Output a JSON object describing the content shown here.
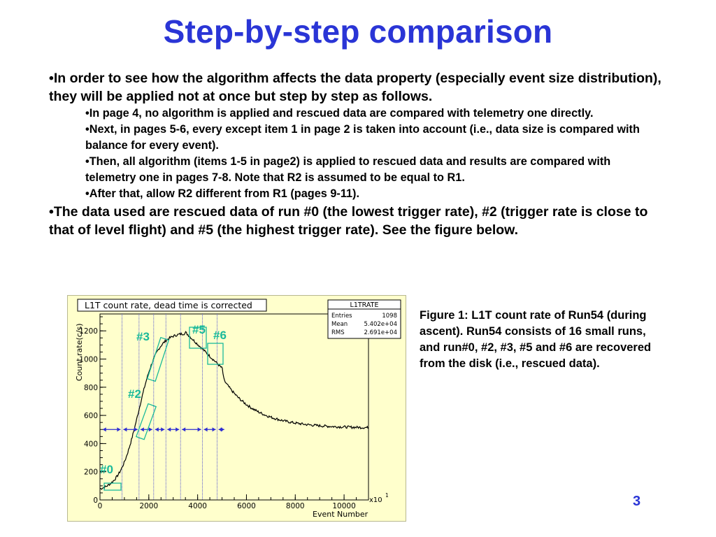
{
  "title": "Step-by-step comparison",
  "bullets": {
    "b1": "•In order to see how the algorithm affects the data property (especially event size distribution), they will be applied not at once but step by step as follows.",
    "sub": [
      "•In page 4, no algorithm is applied and rescued data are compared with telemetry one directly.",
      "•Next, in pages 5-6, every except item 1 in page 2 is taken into account (i.e., data size is compared with balance for every event).",
      "•Then, all algorithm (items 1-5 in page2) is applied to rescued data and results are compared with telemetry one in pages 7-8. Note that R2 is assumed to be equal to R1.",
      "•After that, allow R2 different from R1 (pages 9-11)."
    ],
    "b2": "•The data used are rescued data of run #0 (the lowest trigger rate), #2 (trigger rate is close to that of level flight) and #5 (the highest trigger rate). See the figure below."
  },
  "plot": {
    "title": "L1T count rate, dead time is corrected",
    "stats": {
      "name": "L1TRATE",
      "rows": [
        {
          "label": "Entries",
          "value": "1098"
        },
        {
          "label": "Mean",
          "value": "5.402e+04"
        },
        {
          "label": "RMS",
          "value": "2.691e+04"
        }
      ]
    },
    "ylabel": "Count rate(c/s)",
    "xlabel": "Event Number",
    "xscale_label": "x10",
    "xscale_exp": "1",
    "xticks": [
      "0",
      "2000",
      "4000",
      "6000",
      "8000",
      "10000"
    ],
    "yticks": [
      "0",
      "200",
      "400",
      "600",
      "800",
      "1000",
      "1200"
    ],
    "run_labels": [
      "#0",
      "#2",
      "#3",
      "#5",
      "#6"
    ],
    "colors": {
      "curve": "#000000",
      "runs": "#19b99a",
      "markers": "#2d2dd2"
    }
  },
  "caption": "Figure 1: L1T count rate of Run54 (during ascent). Run54 consists of 16 small runs, and run#0, #2, #3, #5 and #6 are recovered from the disk (i.e., rescued data).",
  "page_number": "3"
}
